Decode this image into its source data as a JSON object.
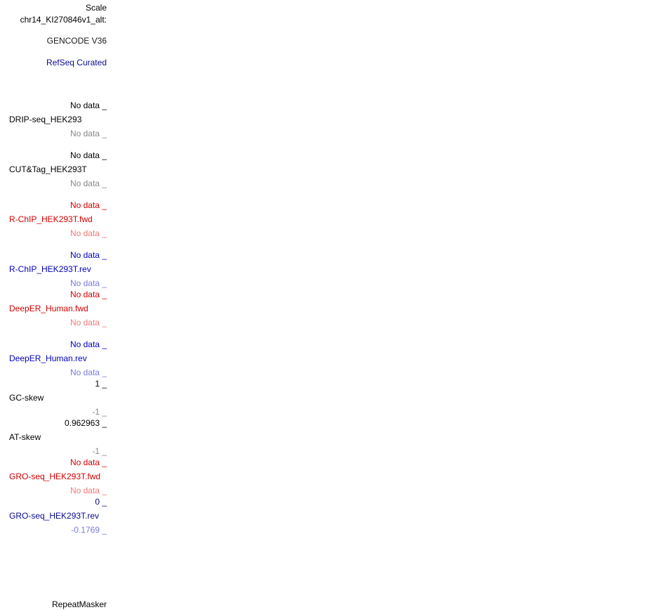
{
  "header": {
    "scale_label": "Scale",
    "chrom_label": "chr14_KI270846v1_alt:"
  },
  "tracks": {
    "gencode": "GENCODE V36",
    "refseq": "RefSeq Curated",
    "drip_seq": {
      "name": "DRIP-seq_HEK293",
      "top": "No data _",
      "bottom": "No data _"
    },
    "cut_tag": {
      "name": "CUT&Tag_HEK293T",
      "top": "No data _",
      "bottom": "No data _"
    },
    "rchip_fwd": {
      "name": "R-ChIP_HEK293T.fwd",
      "top": "No data _",
      "bottom": "No data _"
    },
    "rchip_rev": {
      "name": "R-ChIP_HEK293T.rev",
      "top": "No data _",
      "bottom": "No data _"
    },
    "deeper_fwd": {
      "name": "DeepER_Human.fwd",
      "top": "No data _",
      "bottom": "No data _"
    },
    "deeper_rev": {
      "name": "DeepER_Human.rev",
      "top": "No data _",
      "bottom": "No data _"
    },
    "gc_skew": {
      "name": "GC-skew",
      "top": "1 _",
      "bottom": "-1 _"
    },
    "at_skew": {
      "name": "AT-skew",
      "top": "0.962963 _",
      "bottom": "-1 _"
    },
    "gro_fwd": {
      "name": "GRO-seq_HEK293T.fwd",
      "top": "No data _",
      "bottom": "No data _"
    },
    "gro_rev": {
      "name": "GRO-seq_HEK293T.rev",
      "top": "0 _",
      "bottom": "-0.1769 _"
    },
    "repeatmasker": "RepeatMasker"
  },
  "colors": {
    "black": "#000000",
    "gray": "#888888",
    "navy": "#0a0a8c",
    "red": "#d20000",
    "pink": "#f07878",
    "blue": "#0000be",
    "lightblue": "#7a7ade"
  }
}
